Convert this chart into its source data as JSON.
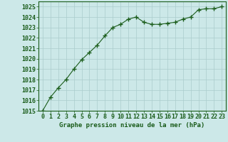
{
  "x": [
    0,
    1,
    2,
    3,
    4,
    5,
    6,
    7,
    8,
    9,
    10,
    11,
    12,
    13,
    14,
    15,
    16,
    17,
    18,
    19,
    20,
    21,
    22,
    23
  ],
  "y": [
    1015.0,
    1016.3,
    1017.2,
    1018.0,
    1019.0,
    1019.9,
    1020.6,
    1021.3,
    1022.2,
    1023.0,
    1023.3,
    1023.8,
    1024.0,
    1023.5,
    1023.3,
    1023.3,
    1023.4,
    1023.5,
    1023.8,
    1024.0,
    1024.7,
    1024.8,
    1024.8,
    1025.0
  ],
  "ylim": [
    1015,
    1025.5
  ],
  "xlim": [
    -0.5,
    23.5
  ],
  "yticks": [
    1015,
    1016,
    1017,
    1018,
    1019,
    1020,
    1021,
    1022,
    1023,
    1024,
    1025
  ],
  "xticks": [
    0,
    1,
    2,
    3,
    4,
    5,
    6,
    7,
    8,
    9,
    10,
    11,
    12,
    13,
    14,
    15,
    16,
    17,
    18,
    19,
    20,
    21,
    22,
    23
  ],
  "line_color": "#1a5c1a",
  "marker": "+",
  "marker_size": 4,
  "bg_color": "#cce8e8",
  "grid_color": "#aacccc",
  "xlabel": "Graphe pression niveau de la mer (hPa)",
  "xlabel_color": "#1a5c1a",
  "tick_color": "#1a5c1a",
  "label_fontsize": 6.5,
  "tick_fontsize": 6.0
}
